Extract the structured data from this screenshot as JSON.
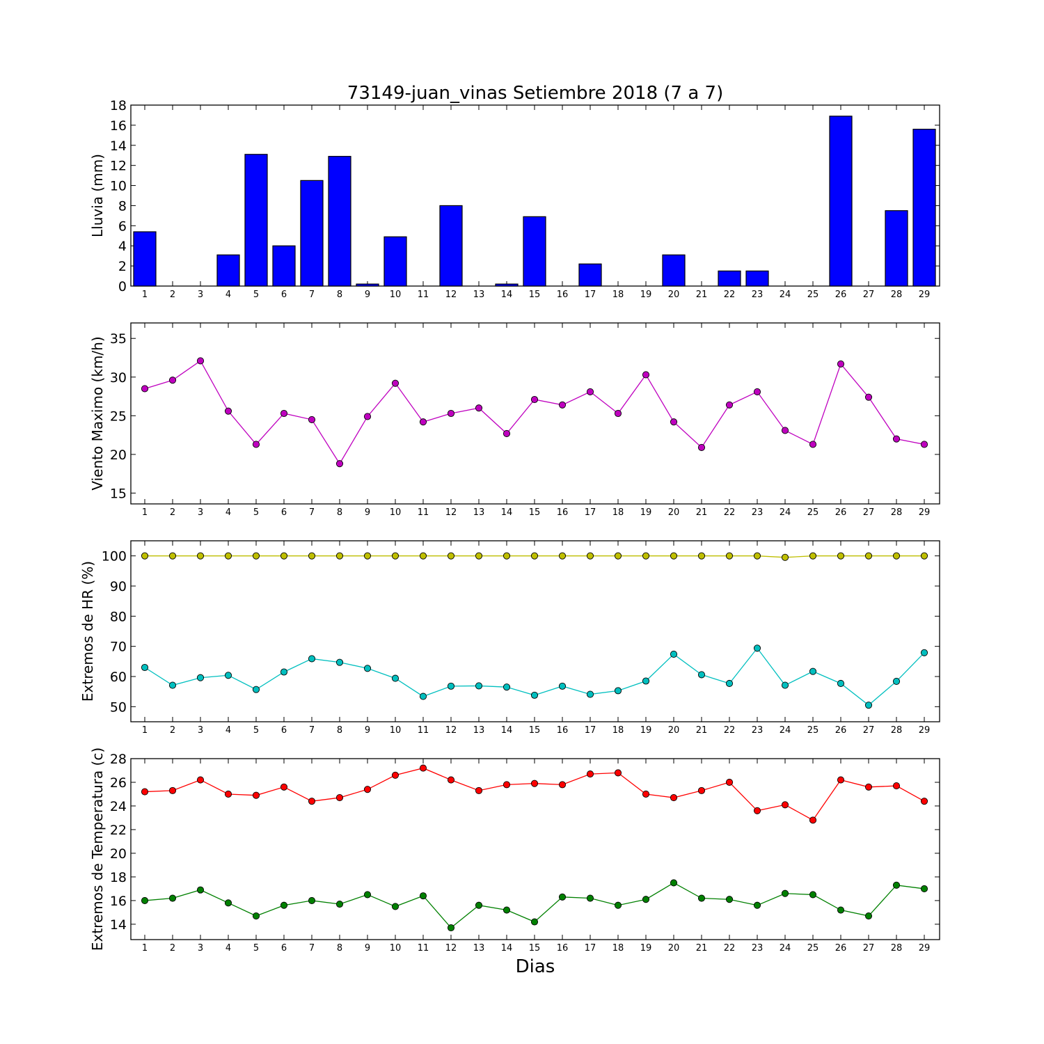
{
  "chart_data": [
    {
      "type": "bar",
      "title": "73149-juan_vinas Setiembre 2018  (7 a 7)",
      "ylabel": "Lluvia (mm)",
      "ylim": [
        0,
        18
      ],
      "yticks": [
        "0",
        "2",
        "4",
        "6",
        "8",
        "10",
        "12",
        "14",
        "16",
        "18"
      ],
      "categories": [
        "1",
        "2",
        "3",
        "4",
        "5",
        "6",
        "7",
        "8",
        "9",
        "10",
        "11",
        "12",
        "13",
        "14",
        "15",
        "16",
        "17",
        "18",
        "19",
        "20",
        "21",
        "22",
        "23",
        "24",
        "25",
        "26",
        "27",
        "28",
        "29"
      ],
      "values": [
        5.4,
        0,
        0,
        3.1,
        13.1,
        4.0,
        10.5,
        12.9,
        0.2,
        4.9,
        0,
        8.0,
        0,
        0.2,
        6.9,
        0,
        2.2,
        0,
        0,
        3.1,
        0,
        1.5,
        1.5,
        0,
        0,
        16.9,
        0,
        7.5,
        15.6
      ],
      "colors": {
        "bar": "#0000ff",
        "edge": "#000000"
      }
    },
    {
      "type": "line",
      "ylabel": "Viento Maximo (km/h)",
      "ylim": [
        13.6,
        37
      ],
      "yticks": [
        "15",
        "20",
        "25",
        "30",
        "35"
      ],
      "x": [
        "1",
        "2",
        "3",
        "4",
        "5",
        "6",
        "7",
        "8",
        "9",
        "10",
        "11",
        "12",
        "13",
        "14",
        "15",
        "16",
        "17",
        "18",
        "19",
        "20",
        "21",
        "22",
        "23",
        "24",
        "25",
        "26",
        "27",
        "28",
        "29"
      ],
      "series": [
        {
          "values": [
            28.5,
            29.6,
            32.1,
            25.6,
            21.3,
            25.3,
            24.5,
            18.8,
            24.9,
            29.2,
            24.2,
            25.3,
            26.0,
            22.7,
            27.1,
            26.4,
            28.1,
            25.3,
            30.3,
            24.2,
            20.9,
            26.4,
            28.1,
            23.1,
            21.3,
            31.7,
            27.4,
            22.0,
            21.3
          ],
          "color": "#bf00bf"
        }
      ]
    },
    {
      "type": "line",
      "ylabel": "Extremos de HR (%)",
      "ylim": [
        45,
        105
      ],
      "yticks": [
        "50",
        "60",
        "70",
        "80",
        "90",
        "100"
      ],
      "x": [
        "1",
        "2",
        "3",
        "4",
        "5",
        "6",
        "7",
        "8",
        "9",
        "10",
        "11",
        "12",
        "13",
        "14",
        "15",
        "16",
        "17",
        "18",
        "19",
        "20",
        "21",
        "22",
        "23",
        "24",
        "25",
        "26",
        "27",
        "28",
        "29"
      ],
      "series": [
        {
          "values": [
            100,
            100,
            100,
            100,
            100,
            100,
            100,
            100,
            100,
            100,
            100,
            100,
            100,
            100,
            100,
            100,
            100,
            100,
            100,
            100,
            100,
            100,
            100,
            99.5,
            100,
            100,
            100,
            100,
            100
          ],
          "color": "#bfbf00"
        },
        {
          "values": [
            63.0,
            57.1,
            59.6,
            60.4,
            55.7,
            61.5,
            65.9,
            64.7,
            62.7,
            59.4,
            53.4,
            56.8,
            56.9,
            56.5,
            53.8,
            56.8,
            54.1,
            55.3,
            58.5,
            67.4,
            60.6,
            57.7,
            69.4,
            57.1,
            61.7,
            57.7,
            50.5,
            58.4,
            67.9
          ],
          "color": "#00bfbf"
        }
      ]
    },
    {
      "type": "line",
      "ylabel": "Extremos de Temperatura (c)",
      "xlabel": "Dias",
      "ylim": [
        12.7,
        28
      ],
      "yticks": [
        "14",
        "16",
        "18",
        "20",
        "22",
        "24",
        "26",
        "28"
      ],
      "x": [
        "1",
        "2",
        "3",
        "4",
        "5",
        "6",
        "7",
        "8",
        "9",
        "10",
        "11",
        "12",
        "13",
        "14",
        "15",
        "16",
        "17",
        "18",
        "19",
        "20",
        "21",
        "22",
        "23",
        "24",
        "25",
        "26",
        "27",
        "28",
        "29"
      ],
      "series": [
        {
          "values": [
            25.2,
            25.3,
            26.2,
            25.0,
            24.9,
            25.6,
            24.4,
            24.7,
            25.4,
            26.6,
            27.2,
            26.2,
            25.3,
            25.8,
            25.9,
            25.8,
            26.7,
            26.8,
            25.0,
            24.7,
            25.3,
            26.0,
            23.6,
            24.1,
            22.8,
            26.2,
            25.6,
            25.7,
            24.4
          ],
          "color": "#ff0000"
        },
        {
          "values": [
            16.0,
            16.2,
            16.9,
            15.8,
            14.7,
            15.6,
            16.0,
            15.7,
            16.5,
            15.5,
            16.4,
            13.7,
            15.6,
            15.2,
            14.2,
            16.3,
            16.2,
            15.6,
            16.1,
            17.5,
            16.2,
            16.1,
            15.6,
            16.6,
            16.5,
            15.2,
            14.7,
            17.3,
            17.0
          ],
          "color": "#008000"
        }
      ]
    }
  ]
}
